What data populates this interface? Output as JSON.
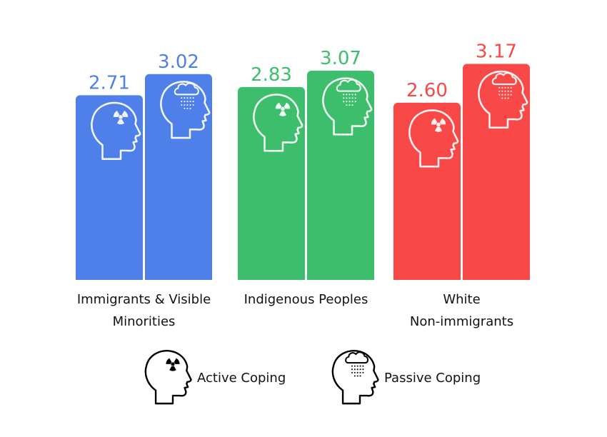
{
  "chart_data": {
    "type": "bar",
    "categories": [
      {
        "lines": [
          "Immigrants & Visible",
          "Minorities"
        ],
        "color": "#4f7fe8"
      },
      {
        "lines": [
          "Indigenous Peoples"
        ],
        "color": "#3dbe6c"
      },
      {
        "lines": [
          "White",
          "Non-immigrants"
        ],
        "color": "#f84848"
      }
    ],
    "series": [
      {
        "name": "Active Coping",
        "icon": "active-coping-head-icon",
        "values": [
          2.71,
          2.83,
          2.6
        ],
        "labels": [
          "2.71",
          "2.83",
          "2.60"
        ]
      },
      {
        "name": "Passive Coping",
        "icon": "passive-coping-head-icon",
        "values": [
          3.02,
          3.07,
          3.17
        ],
        "labels": [
          "3.02",
          "3.07",
          "3.17"
        ]
      }
    ],
    "title": "",
    "xlabel": "",
    "ylabel": "",
    "ylim": [
      0,
      3.5
    ],
    "grid": false,
    "legend": "bottom"
  }
}
